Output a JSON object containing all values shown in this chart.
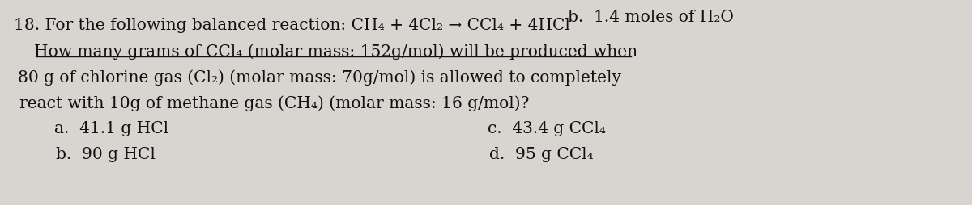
{
  "bg_color": "#d8d4cf",
  "text_color": "#111111",
  "top_right_text": "b.  1.4 moles of H₂O",
  "q18_num": "18.",
  "line1": "For the following balanced reaction: CH₄ + 4Cl₂ → CCl₄ + 4HCl",
  "line2": "How many grams of CCl₄ (molar mass: 152g/mol) will be produced when",
  "line3": "80 g of chlorine gas (Cl₂) (molar mass: 70g/mol) is allowed to completely",
  "line4": "react with 10g of methane gas (CH₄) (molar mass: 16 g/mol)?",
  "ans_a": "a.  41.1 g HCl",
  "ans_b": "b.  90 g HCl",
  "ans_c": "c.  43.4 g CCl₄",
  "ans_d": "d.  95 g CCl₄",
  "fontsize": 14.5,
  "skew_deg": -4.5
}
